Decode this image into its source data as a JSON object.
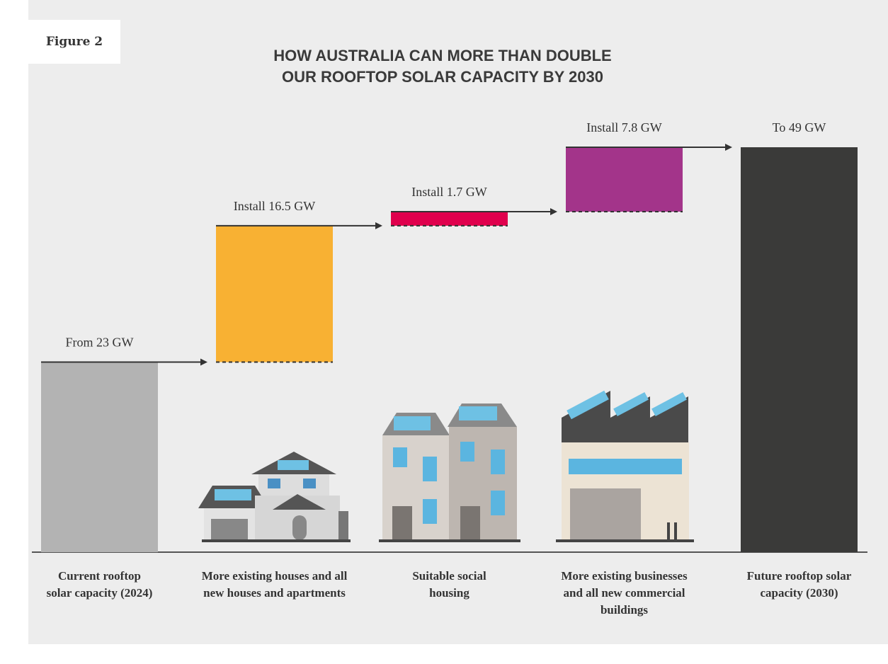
{
  "figure_label": "Figure 2",
  "chart_data": {
    "type": "waterfall",
    "title": "HOW AUSTRALIA CAN MORE THAN DOUBLE OUR ROOFTOP SOLAR CAPACITY BY 2030",
    "categories": [
      "Current rooftop solar capacity (2024)",
      "More existing houses and all new houses and apartments",
      "Suitable social housing",
      "More existing businesses and all new commercial buildings",
      "Future rooftop solar capacity (2030)"
    ],
    "measure": [
      "absolute",
      "relative",
      "relative",
      "relative",
      "total"
    ],
    "values": [
      23,
      16.5,
      1.7,
      7.8,
      49
    ],
    "value_labels": [
      "From 23 GW",
      "Install 16.5 GW",
      "Install 1.7 GW",
      "Install 7.8 GW",
      "To 49 GW"
    ],
    "colors": [
      "#b3b3b3",
      "#f8b133",
      "#e0004d",
      "#a3348a",
      "#3a3a39"
    ],
    "ylim": [
      0,
      49
    ]
  }
}
